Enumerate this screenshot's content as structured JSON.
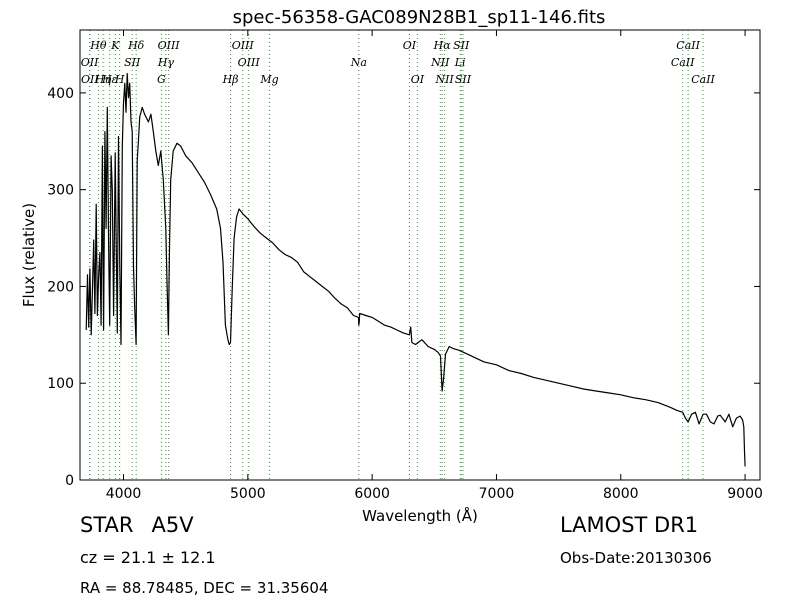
{
  "chart_data": {
    "type": "line",
    "title": "spec-56358-GAC089N28B1_sp11-146.fits",
    "xlabel": "Wavelength (Å)",
    "ylabel": "Flux (relative)",
    "xlim": [
      3650,
      9120
    ],
    "ylim": [
      0,
      465
    ],
    "xticks": [
      4000,
      5000,
      6000,
      7000,
      8000,
      9000
    ],
    "yticks": [
      0,
      100,
      200,
      300,
      400
    ],
    "grid": false,
    "line_color": "#000000",
    "marker_line_color": "#2ca02c",
    "series": [
      {
        "x": [
          3700,
          3710,
          3720,
          3730,
          3740,
          3750,
          3760,
          3770,
          3780,
          3790,
          3800,
          3810,
          3820,
          3830,
          3835,
          3840,
          3850,
          3860,
          3870,
          3880,
          3889,
          3900,
          3910,
          3920,
          3933,
          3940,
          3950,
          3960,
          3970,
          3980,
          3990,
          4000,
          4010,
          4020,
          4030,
          4040,
          4050,
          4060,
          4070,
          4080,
          4090,
          4101,
          4110,
          4120,
          4130,
          4150,
          4170,
          4200,
          4220,
          4240,
          4260,
          4280,
          4300,
          4320,
          4340,
          4350,
          4361,
          4370,
          4380,
          4400,
          4430,
          4460,
          4500,
          4550,
          4600,
          4650,
          4700,
          4750,
          4780,
          4800,
          4820,
          4840,
          4850,
          4861,
          4875,
          4890,
          4910,
          4930,
          4960,
          5000,
          5050,
          5100,
          5150,
          5200,
          5250,
          5300,
          5350,
          5400,
          5450,
          5500,
          5550,
          5600,
          5650,
          5700,
          5750,
          5800,
          5850,
          5890,
          5893,
          5896,
          5900,
          5950,
          6000,
          6050,
          6100,
          6150,
          6200,
          6250,
          6300,
          6310,
          6320,
          6350,
          6400,
          6450,
          6500,
          6530,
          6550,
          6563,
          6575,
          6590,
          6620,
          6650,
          6700,
          6800,
          6900,
          7000,
          7100,
          7200,
          7300,
          7400,
          7500,
          7600,
          7700,
          7800,
          7900,
          8000,
          8100,
          8200,
          8300,
          8400,
          8450,
          8498,
          8520,
          8542,
          8570,
          8600,
          8630,
          8662,
          8690,
          8720,
          8750,
          8780,
          8800,
          8840,
          8870,
          8900,
          8930,
          8960,
          8980,
          8990,
          8995,
          9000
        ],
        "y": [
          155,
          212,
          158,
          218,
          150,
          195,
          248,
          172,
          285,
          170,
          210,
          235,
          160,
          345,
          230,
          155,
          360,
          260,
          385,
          245,
          160,
          335,
          300,
          170,
          338,
          255,
          152,
          355,
          220,
          140,
          345,
          390,
          410,
          380,
          420,
          395,
          410,
          370,
          360,
          220,
          178,
          140,
          330,
          350,
          375,
          385,
          378,
          370,
          378,
          360,
          340,
          325,
          340,
          310,
          260,
          205,
          150,
          240,
          310,
          340,
          348,
          345,
          335,
          328,
          318,
          308,
          295,
          280,
          260,
          225,
          160,
          145,
          140,
          142,
          200,
          250,
          272,
          280,
          275,
          270,
          262,
          255,
          250,
          245,
          238,
          233,
          230,
          225,
          215,
          210,
          205,
          200,
          195,
          188,
          182,
          178,
          170,
          168,
          160,
          163,
          172,
          170,
          168,
          164,
          160,
          158,
          155,
          152,
          150,
          158,
          142,
          140,
          145,
          138,
          135,
          132,
          128,
          92,
          105,
          130,
          138,
          136,
          134,
          128,
          122,
          119,
          113,
          110,
          106,
          103,
          100,
          97,
          94,
          92,
          90,
          88,
          85,
          83,
          80,
          75,
          72,
          70,
          64,
          60,
          68,
          70,
          58,
          68,
          68,
          60,
          58,
          66,
          67,
          60,
          68,
          55,
          64,
          66,
          62,
          55,
          30,
          14
        ]
      }
    ],
    "annotations": [
      {
        "label": "Hθ",
        "x": 3798,
        "row": 1
      },
      {
        "label": "OII",
        "x": 3727,
        "row": 2
      },
      {
        "label": "OII",
        "x": 3729,
        "row": 3
      },
      {
        "label": "Hη",
        "x": 3836,
        "row": 3
      },
      {
        "label": "K",
        "x": 3934,
        "row": 1
      },
      {
        "label": "Hε",
        "x": 3889,
        "row": 3
      },
      {
        "label": "SII",
        "x": 4070,
        "row": 2
      },
      {
        "label": "H",
        "x": 3969,
        "row": 3
      },
      {
        "label": "Hδ",
        "x": 4102,
        "row": 1
      },
      {
        "label": "OIII",
        "x": 4363,
        "row": 1
      },
      {
        "label": "Hγ",
        "x": 4341,
        "row": 2
      },
      {
        "label": "G",
        "x": 4305,
        "row": 3
      },
      {
        "label": "OIII",
        "x": 4959,
        "row": 1
      },
      {
        "label": "OIII",
        "x": 5007,
        "row": 2
      },
      {
        "label": "Hβ",
        "x": 4861,
        "row": 3
      },
      {
        "label": "Mg",
        "x": 5175,
        "row": 3
      },
      {
        "label": "Na",
        "x": 5893,
        "row": 2
      },
      {
        "label": "OI",
        "x": 6300,
        "row": 1
      },
      {
        "label": "OI",
        "x": 6364,
        "row": 3
      },
      {
        "label": "Hα",
        "x": 6563,
        "row": 1
      },
      {
        "label": "SII",
        "x": 6717,
        "row": 1
      },
      {
        "label": "NII",
        "x": 6548,
        "row": 2
      },
      {
        "label": "Li",
        "x": 6708,
        "row": 2
      },
      {
        "label": "NII",
        "x": 6583,
        "row": 3
      },
      {
        "label": "SII",
        "x": 6731,
        "row": 3
      },
      {
        "label": "CaII",
        "x": 8542,
        "row": 1
      },
      {
        "label": "CaII",
        "x": 8498,
        "row": 2
      },
      {
        "label": "CaII",
        "x": 8662,
        "row": 3
      }
    ],
    "marker_lines": [
      3727,
      3729,
      3798,
      3836,
      3889,
      3934,
      3969,
      4070,
      4102,
      4305,
      4341,
      4363,
      4861,
      4959,
      5007,
      5175,
      5893,
      6300,
      6364,
      6548,
      6563,
      6583,
      6708,
      6717,
      6731,
      8498,
      8542,
      8662
    ]
  },
  "footer": {
    "class_label": "STAR",
    "subclass_label": "A5V",
    "survey": "LAMOST DR1",
    "redshift": "cz = 21.1 ± 12.1",
    "obs_date": "Obs-Date:20130306",
    "coords": "RA = 88.78485, DEC = 31.35604"
  }
}
